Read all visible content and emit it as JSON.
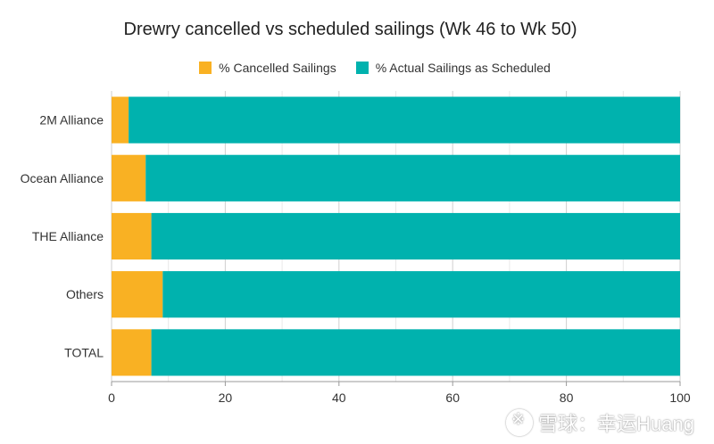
{
  "chart_data": {
    "type": "bar",
    "orientation": "horizontal",
    "stacked": true,
    "title": "Drewry cancelled vs scheduled sailings (Wk 46 to Wk 50)",
    "categories": [
      "2M Alliance",
      "Ocean Alliance",
      "THE Alliance",
      "Others",
      "TOTAL"
    ],
    "series": [
      {
        "name": "% Cancelled Sailings",
        "color": "#F9B123",
        "values": [
          3,
          6,
          7,
          9,
          7
        ]
      },
      {
        "name": "% Actual Sailings as Scheduled",
        "color": "#00B2AE",
        "values": [
          97,
          94,
          93,
          91,
          93
        ]
      }
    ],
    "xlim": [
      0,
      100
    ],
    "xticks": [
      0,
      20,
      40,
      60,
      80,
      100
    ],
    "grid": true,
    "legend_position": "top"
  },
  "watermark": {
    "text": "雪球：幸运Huang"
  }
}
